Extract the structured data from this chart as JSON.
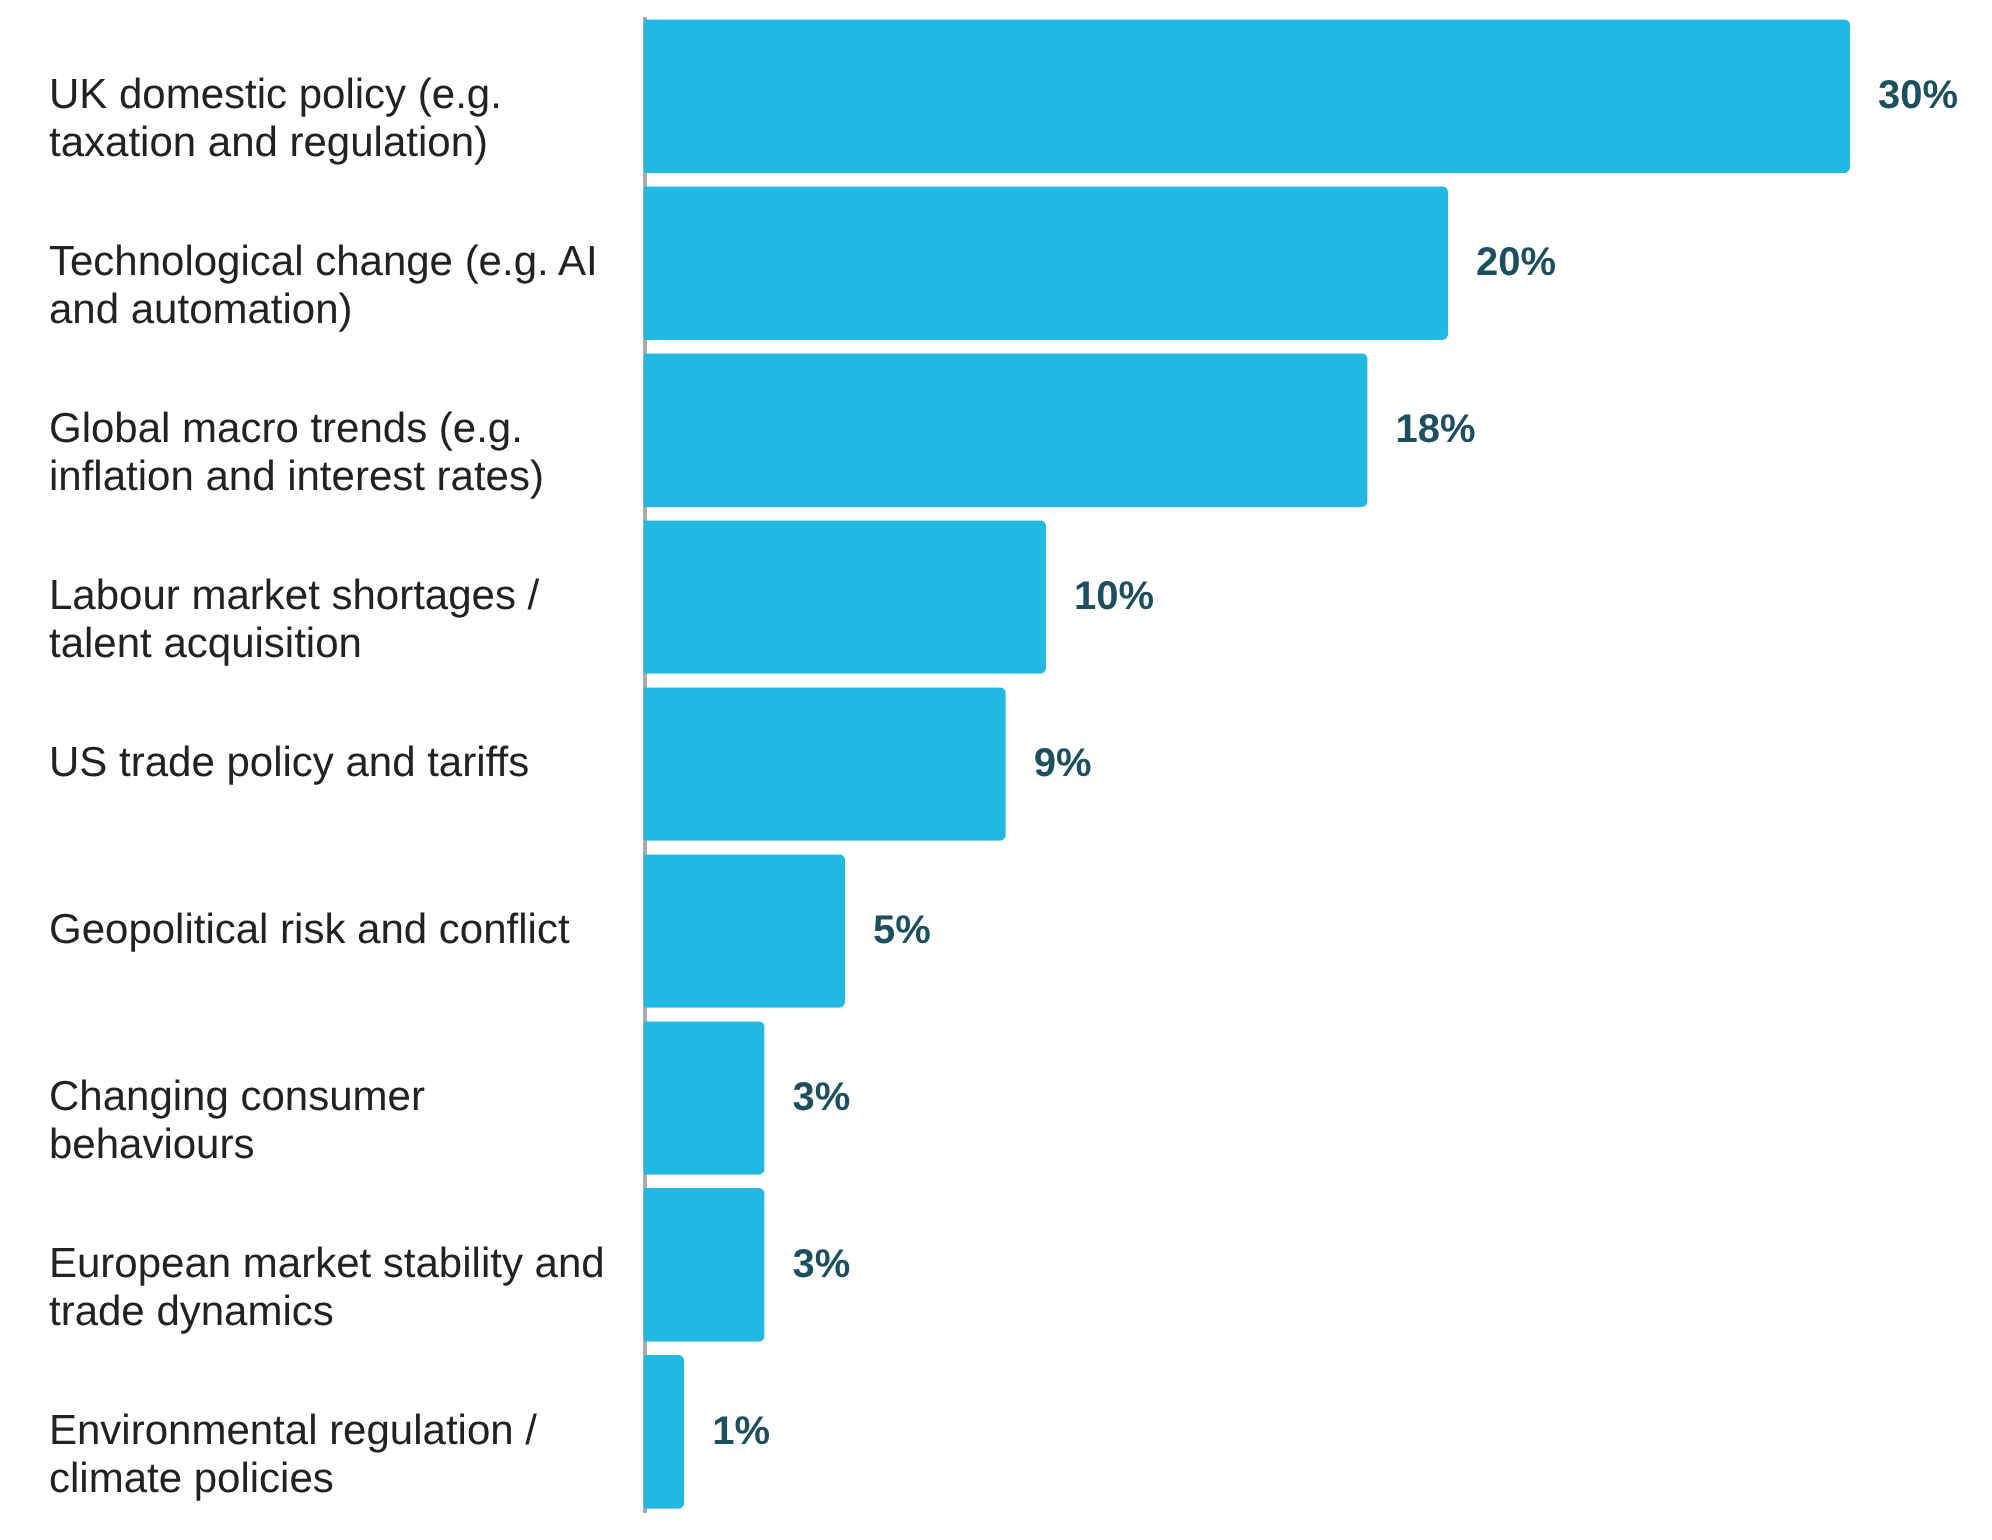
{
  "chart_data": {
    "type": "bar",
    "orientation": "horizontal",
    "data_labels": true,
    "categories": [
      "UK domestic policy (e.g. taxation and regulation)",
      "Technological change (e.g. AI and automation)",
      "Global macro trends (e.g. inflation and interest rates)",
      "Labour market shortages / talent acquisition",
      "US trade policy and tariffs",
      "Geopolitical risk and conflict",
      "Changing consumer behaviours",
      "European market stability and trade dynamics",
      "Environmental regulation / climate policies"
    ],
    "values": [
      30,
      20,
      18,
      10,
      9,
      5,
      3,
      3,
      1
    ],
    "value_labels": [
      "30%",
      "20%",
      "18%",
      "10%",
      "9%",
      "5%",
      "3%",
      "3%",
      "1%"
    ],
    "color": "#21b8e2"
  }
}
